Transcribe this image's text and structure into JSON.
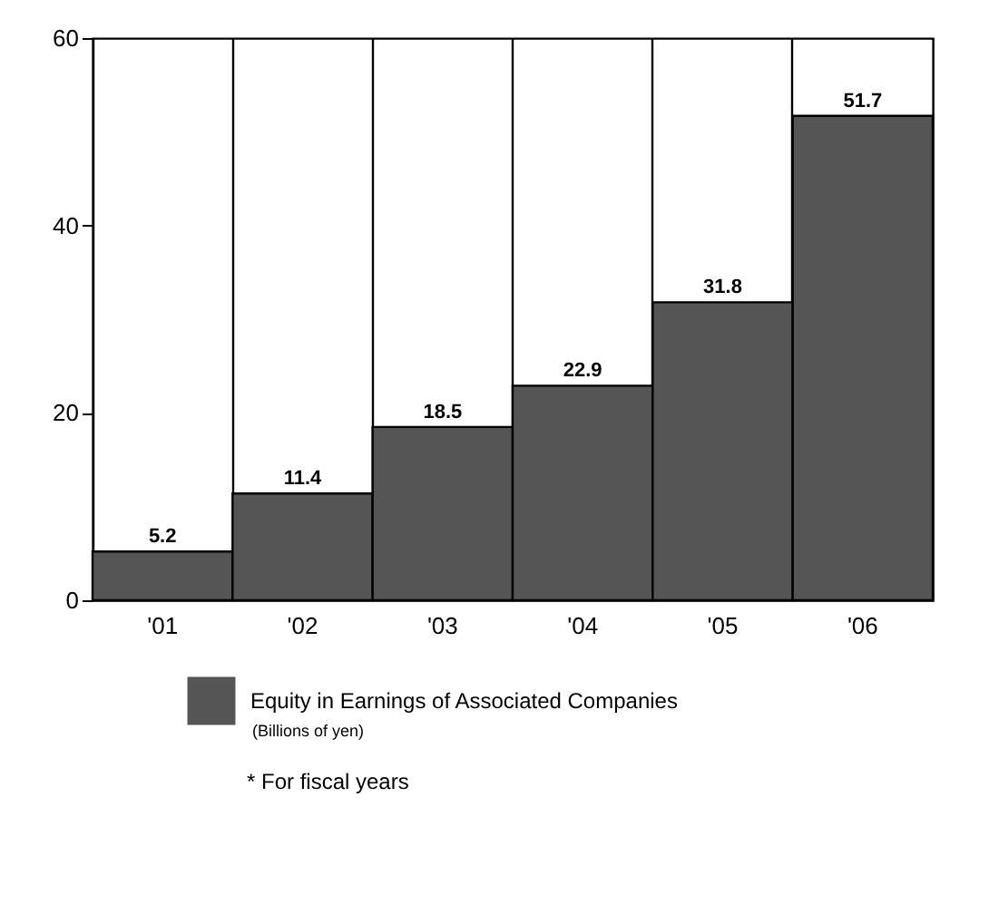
{
  "chart_data": {
    "type": "bar",
    "categories": [
      "'01",
      "'02",
      "'03",
      "'04",
      "'05",
      "'06"
    ],
    "series": [
      {
        "name": "Equity in Earnings of Associated Companies",
        "color": "#555555",
        "values": [
          5.2,
          11.4,
          18.5,
          22.9,
          31.8,
          51.7
        ]
      }
    ],
    "ylim": [
      0,
      60
    ],
    "yticks": [
      0,
      20,
      40,
      60
    ],
    "grid": "x",
    "legend": "bottom",
    "data_labels": true,
    "annotations": [
      "(Billions of yen)",
      "* For fiscal years"
    ]
  }
}
